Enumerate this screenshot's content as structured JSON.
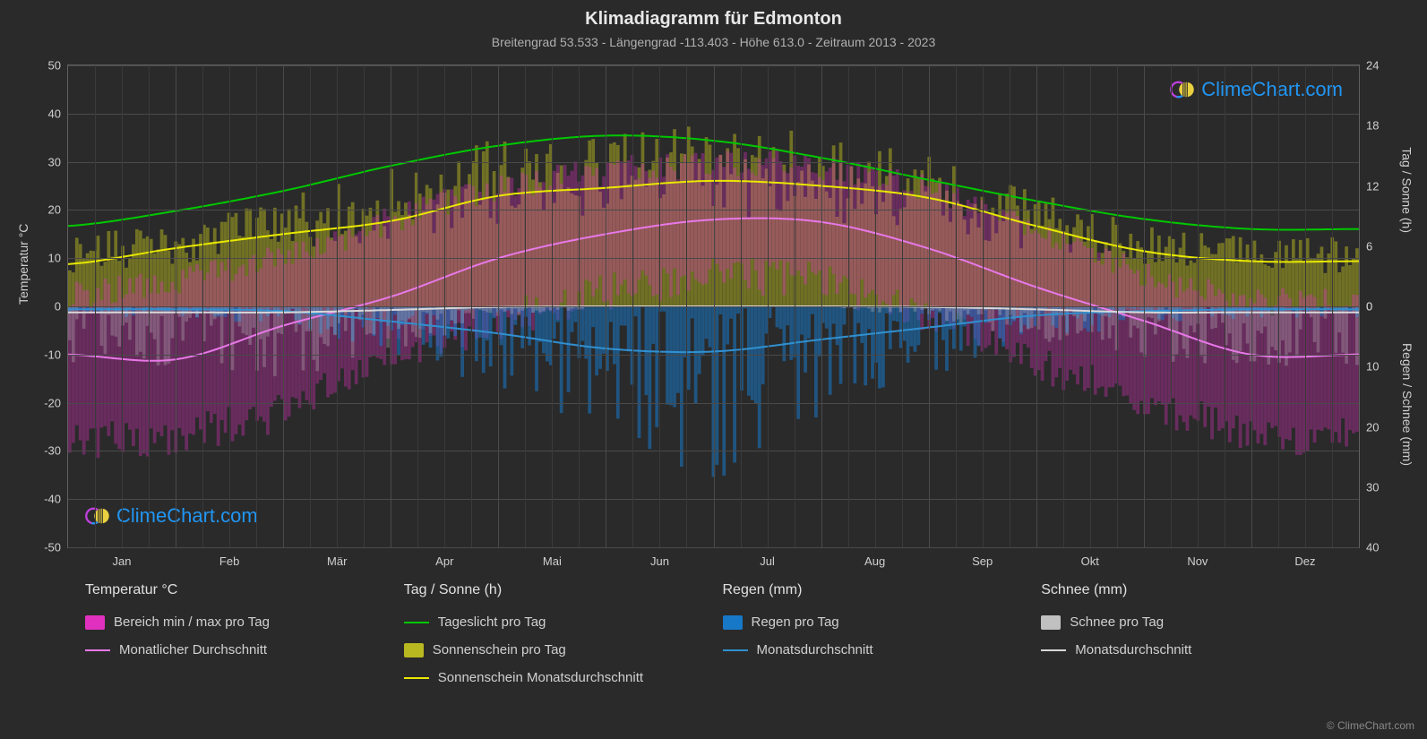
{
  "title": "Klimadiagramm für Edmonton",
  "subtitle": "Breitengrad 53.533 - Längengrad -113.403 - Höhe 613.0 - Zeitraum 2013 - 2023",
  "watermark_text": "ClimeChart.com",
  "copyright": "© ClimeChart.com",
  "chart": {
    "type": "climate-chart",
    "background_color": "#2a2a2a",
    "grid_color": "#4a4a4a",
    "minor_grid_color": "#3a3a3a",
    "text_color": "#d0d0d0",
    "months": [
      "Jan",
      "Feb",
      "Mär",
      "Apr",
      "Mai",
      "Jun",
      "Jul",
      "Aug",
      "Sep",
      "Okt",
      "Nov",
      "Dez"
    ],
    "axis_left": {
      "title": "Temperatur °C",
      "min": -50,
      "max": 50,
      "step": 10,
      "ticks": [
        -50,
        -40,
        -30,
        -20,
        -10,
        0,
        10,
        20,
        30,
        40,
        50
      ]
    },
    "axis_right_top": {
      "title": "Tag / Sonne (h)",
      "min": 0,
      "max": 24,
      "step": 6,
      "ticks": [
        0,
        6,
        12,
        18,
        24
      ],
      "map_to_temp_range": [
        0,
        50
      ]
    },
    "axis_right_bot": {
      "title": "Regen / Schnee (mm)",
      "min": 40,
      "max": 0,
      "step": 10,
      "ticks": [
        0,
        10,
        20,
        30,
        40
      ],
      "map_to_temp_range": [
        0,
        -50
      ]
    },
    "series": {
      "daylight": {
        "label": "Tageslicht pro Tag",
        "color": "#00c800",
        "line_width": 2,
        "monthly_hours": [
          8.0,
          9.5,
          11.5,
          14.0,
          16.0,
          17.0,
          16.5,
          14.8,
          12.6,
          10.5,
          8.7,
          7.7
        ]
      },
      "sunshine_avg": {
        "label": "Sonnenschein Monatsdurchschnitt",
        "color": "#e8e800",
        "line_width": 2,
        "monthly_hours": [
          4.2,
          5.8,
          7.2,
          8.5,
          11.0,
          11.8,
          12.5,
          12.0,
          10.8,
          8.0,
          5.5,
          4.5
        ]
      },
      "temp_avg": {
        "label": "Monatlicher Durchschnitt",
        "color": "#e878e8",
        "line_width": 2,
        "monthly_c": [
          -10,
          -11,
          -4,
          2,
          10,
          15,
          18,
          17.5,
          12,
          4,
          -3,
          -10
        ]
      },
      "rain_avg": {
        "label": "Monatsdurchschnitt (Regen)",
        "color": "#3090d0",
        "line_width": 2,
        "monthly_mm": [
          0.5,
          0.5,
          0.8,
          2.5,
          4.5,
          7.0,
          7.5,
          5.5,
          3.5,
          1.5,
          0.8,
          0.5
        ]
      },
      "snow_avg": {
        "label": "Monatsdurchschnitt (Schnee)",
        "color": "#d8d8d8",
        "line_width": 2,
        "monthly_mm": [
          1.0,
          1.0,
          1.0,
          0.6,
          0.1,
          0,
          0,
          0,
          0.1,
          0.5,
          1.0,
          1.0
        ]
      },
      "temp_range_bars": {
        "label": "Bereich min / max pro Tag",
        "color": "#e030c0",
        "opacity": 0.35,
        "monthly_min_c": [
          -28,
          -27,
          -22,
          -10,
          -3,
          3,
          7,
          5,
          -2,
          -12,
          -20,
          -27
        ],
        "monthly_max_c": [
          2,
          5,
          10,
          18,
          25,
          28,
          30,
          29,
          24,
          16,
          6,
          1
        ]
      },
      "sunshine_bars": {
        "label": "Sonnenschein pro Tag",
        "color": "#b8b820",
        "opacity": 0.5,
        "monthly_hours": [
          6,
          7.5,
          10,
          12,
          15,
          16,
          16,
          15,
          13,
          10,
          7,
          6
        ]
      },
      "rain_bars": {
        "label": "Regen pro Tag",
        "color": "#1878c8",
        "opacity": 0.55,
        "monthly_mm_max": [
          2,
          2,
          3,
          8,
          14,
          22,
          30,
          18,
          12,
          6,
          3,
          2
        ]
      },
      "snow_bars": {
        "label": "Schnee pro Tag",
        "color": "#c0c0c0",
        "opacity": 0.3,
        "monthly_mm_max": [
          10,
          10,
          12,
          8,
          2,
          0,
          0,
          0,
          2,
          6,
          10,
          10
        ]
      }
    }
  },
  "legend": {
    "col1_heading": "Temperatur °C",
    "col1_items": [
      {
        "type": "swatch",
        "color": "#e030c0",
        "label": "Bereich min / max pro Tag"
      },
      {
        "type": "line",
        "color": "#e878e8",
        "label": "Monatlicher Durchschnitt"
      }
    ],
    "col2_heading": "Tag / Sonne (h)",
    "col2_items": [
      {
        "type": "line",
        "color": "#00c800",
        "label": "Tageslicht pro Tag"
      },
      {
        "type": "swatch",
        "color": "#b8b820",
        "label": "Sonnenschein pro Tag"
      },
      {
        "type": "line",
        "color": "#e8e800",
        "label": "Sonnenschein Monatsdurchschnitt"
      }
    ],
    "col3_heading": "Regen (mm)",
    "col3_items": [
      {
        "type": "swatch",
        "color": "#1878c8",
        "label": "Regen pro Tag"
      },
      {
        "type": "line",
        "color": "#3090d0",
        "label": "Monatsdurchschnitt"
      }
    ],
    "col4_heading": "Schnee (mm)",
    "col4_items": [
      {
        "type": "swatch",
        "color": "#c0c0c0",
        "label": "Schnee pro Tag"
      },
      {
        "type": "line",
        "color": "#d8d8d8",
        "label": "Monatsdurchschnitt"
      }
    ]
  }
}
